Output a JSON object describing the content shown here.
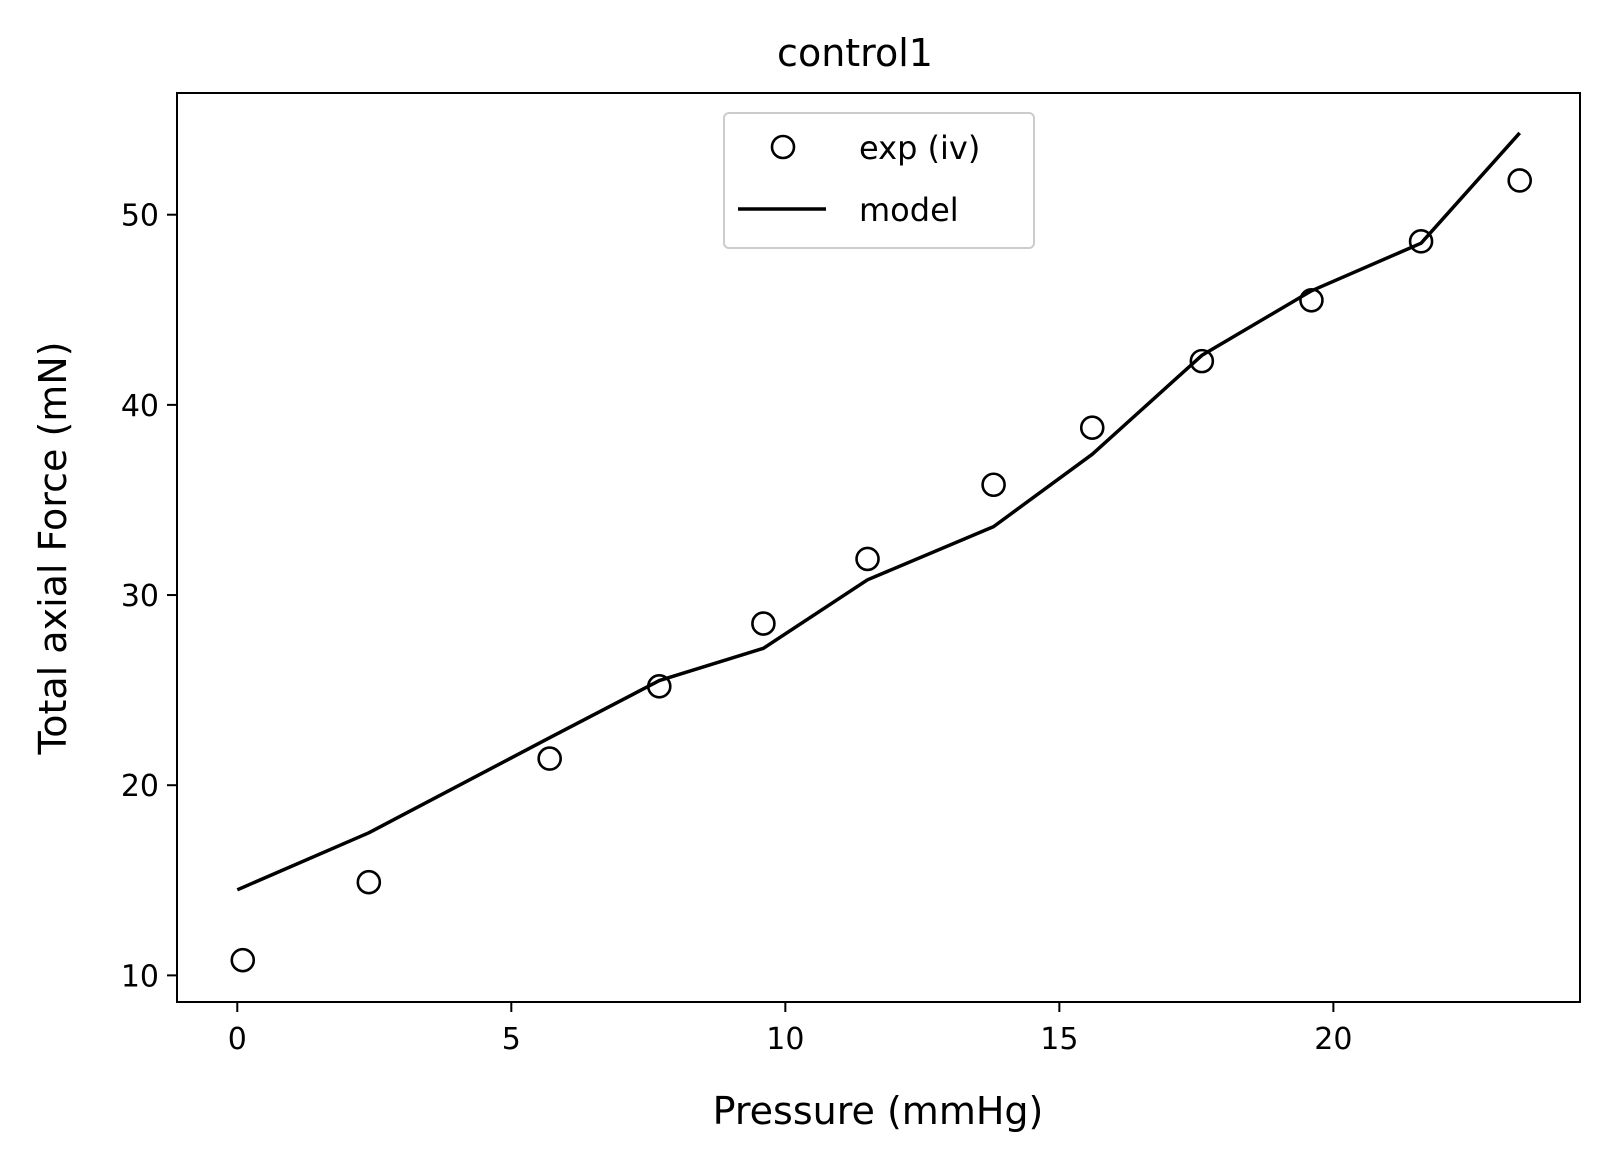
{
  "chart_data": {
    "type": "line",
    "title": "control1",
    "xlabel": "Pressure (mmHg)",
    "ylabel": "Total axial Force (mN)",
    "xlim": [
      -1.1,
      24.5
    ],
    "ylim": [
      8.6,
      56.4
    ],
    "xticks": [
      0,
      5,
      10,
      15,
      20
    ],
    "yticks": [
      10,
      20,
      30,
      40,
      50
    ],
    "grid": false,
    "legend_position": "top-center",
    "series": [
      {
        "name": "exp (iv)",
        "style": "markers",
        "marker": "open-circle",
        "color": "#000000",
        "x": [
          0.1,
          2.4,
          5.7,
          7.7,
          9.6,
          11.5,
          13.8,
          15.6,
          17.6,
          19.6,
          21.6,
          23.4
        ],
        "y": [
          10.8,
          14.9,
          21.4,
          25.2,
          28.5,
          31.9,
          35.8,
          38.8,
          42.3,
          45.5,
          48.6,
          51.8
        ]
      },
      {
        "name": "model",
        "style": "line",
        "color": "#000000",
        "x": [
          0.0,
          2.4,
          5.7,
          7.7,
          9.6,
          11.5,
          13.8,
          15.6,
          17.6,
          19.6,
          21.6,
          23.4
        ],
        "y": [
          14.5,
          17.5,
          22.5,
          25.5,
          27.2,
          30.8,
          33.6,
          37.4,
          42.6,
          46.0,
          48.5,
          54.3
        ]
      }
    ]
  }
}
